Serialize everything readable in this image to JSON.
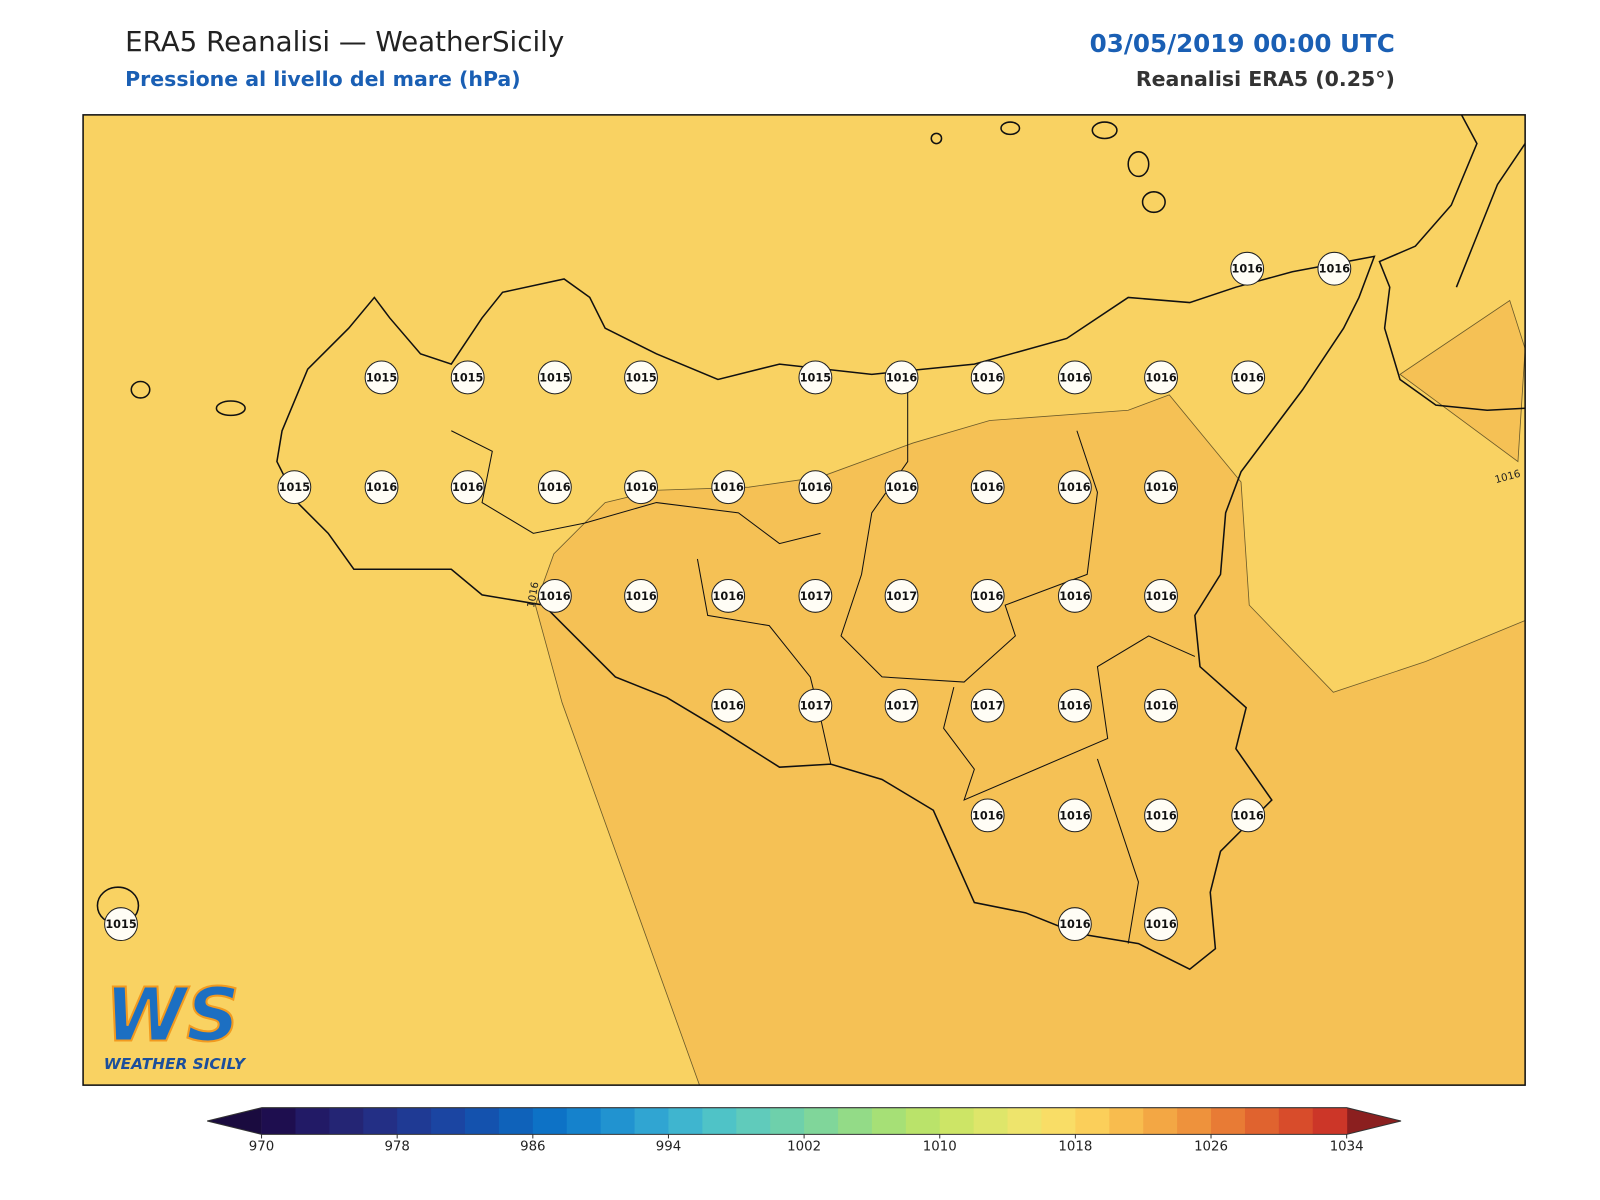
{
  "header": {
    "title": "ERA5 Reanalisi — WeatherSicily",
    "subtitle": "Pressione al livello del mare (hPa)",
    "date": "03/05/2019 00:00 UTC",
    "source": "Reanalisi ERA5 (0.25°)"
  },
  "map": {
    "land_color": "#f9d262",
    "high_color": "#f5c155",
    "contour_labels": [
      "1016",
      "1016"
    ],
    "stations": [
      1016,
      1016,
      1015,
      1015,
      1015,
      1015,
      1015,
      1016,
      1016,
      1016,
      1016,
      1016,
      1015,
      1016,
      1016,
      1016,
      1016,
      1016,
      1016,
      1016,
      1016,
      1016,
      1016,
      1016,
      1016,
      1016,
      1017,
      1017,
      1016,
      1016,
      1016,
      1016,
      1017,
      1017,
      1017,
      1016,
      1016,
      1016,
      1016,
      1016,
      1016,
      1015,
      1016,
      1016
    ]
  },
  "logo": {
    "mark": "WS",
    "text": "WEATHER SICILY"
  },
  "colorbar": {
    "ticks": [
      970,
      978,
      986,
      994,
      1002,
      1010,
      1018,
      1026,
      1034
    ],
    "under_color": "#1a0b3f",
    "over_color": "#8b1f1f",
    "colors": [
      "#1e0e4f",
      "#221a66",
      "#242574",
      "#232f85",
      "#1f3a94",
      "#1b45a2",
      "#1452ae",
      "#0f62ba",
      "#0d72c6",
      "#1582cc",
      "#2193d0",
      "#30a5d2",
      "#3fb5cf",
      "#4fc3c7",
      "#60cbbb",
      "#6ed0ab",
      "#80d69a",
      "#93db87",
      "#a6e076",
      "#bae36a",
      "#cde566",
      "#dee66a",
      "#eee46c",
      "#f9dd66",
      "#fbcf5a",
      "#f8bc4e",
      "#f3a744",
      "#ee923c",
      "#e87b35",
      "#e0632f",
      "#d84c2b",
      "#cc3628"
    ]
  }
}
